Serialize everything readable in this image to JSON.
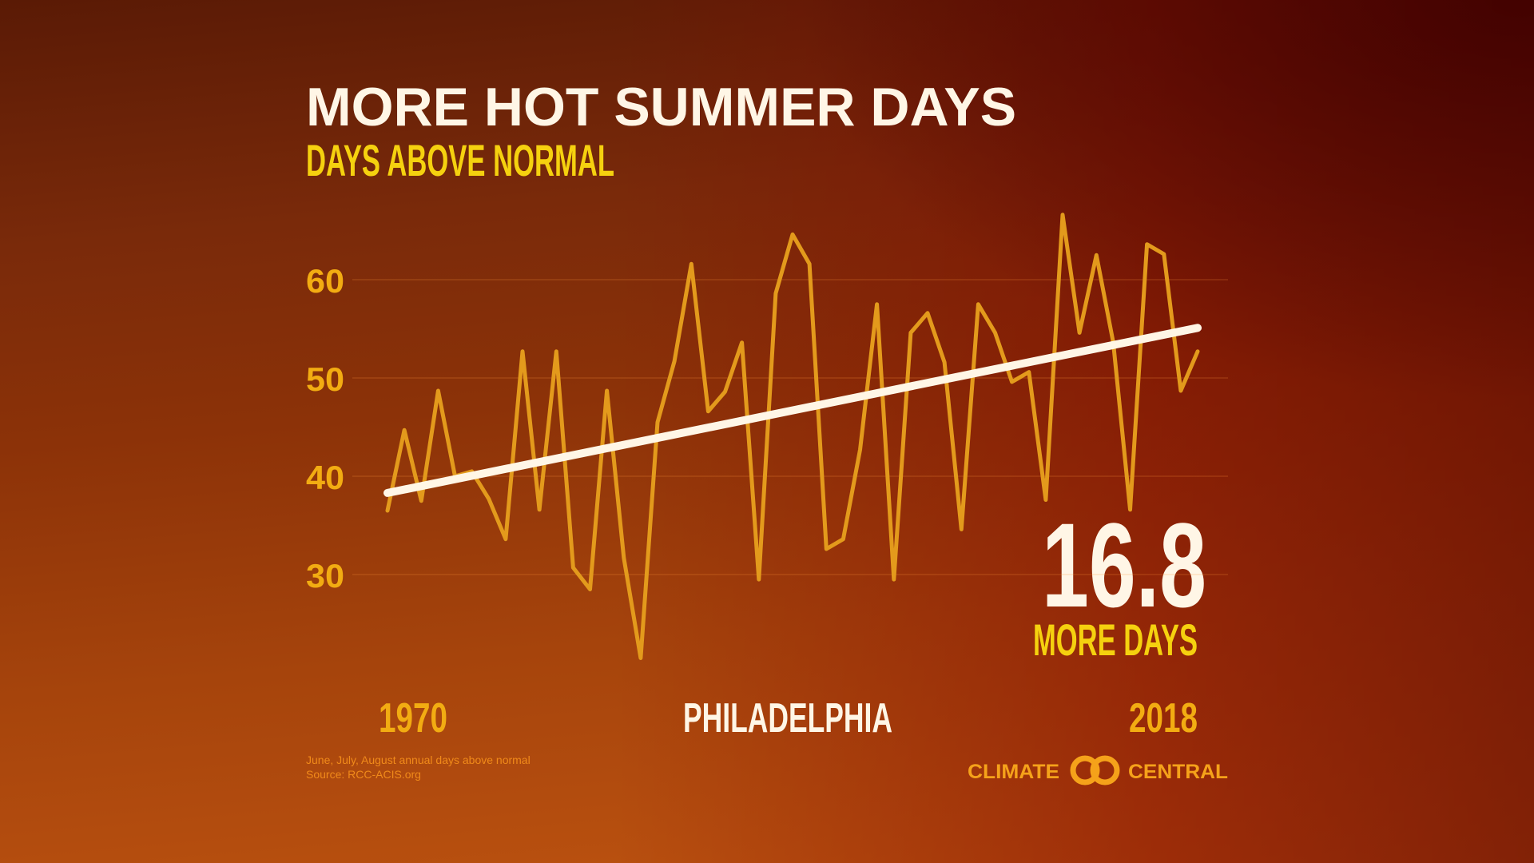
{
  "chart_data": {
    "type": "line",
    "title": "MORE HOT SUMMER DAYS",
    "subtitle": "DAYS ABOVE NORMAL",
    "location": "PHILADELPHIA",
    "annotation_value": 16.8,
    "annotation_label": "MORE DAYS",
    "x": [
      1970,
      1971,
      1972,
      1973,
      1974,
      1975,
      1976,
      1977,
      1978,
      1979,
      1980,
      1981,
      1982,
      1983,
      1984,
      1985,
      1986,
      1987,
      1988,
      1989,
      1990,
      1991,
      1992,
      1993,
      1994,
      1995,
      1996,
      1997,
      1998,
      1999,
      2000,
      2001,
      2002,
      2003,
      2004,
      2005,
      2006,
      2007,
      2008,
      2009,
      2010,
      2011,
      2012,
      2013,
      2014,
      2015,
      2016,
      2017,
      2018
    ],
    "values": [
      36.5,
      44.7,
      37.5,
      48.7,
      40,
      40.5,
      37.7,
      33.6,
      52.7,
      36.6,
      52.7,
      30.7,
      28.5,
      48.7,
      31.7,
      21.5,
      45.5,
      51.7,
      61.6,
      46.6,
      48.6,
      53.6,
      29.5,
      58.6,
      64.6,
      61.6,
      32.6,
      33.6,
      42.7,
      57.5,
      29.5,
      54.6,
      56.6,
      51.6,
      34.6,
      57.5,
      54.6,
      49.6,
      50.6,
      37.6,
      66.6,
      54.6,
      62.5,
      53.6,
      36.6,
      63.6,
      62.6,
      48.7,
      52.7
    ],
    "color": "#e39a1c",
    "trend": {
      "x": [
        1970,
        2018
      ],
      "values": [
        38.3,
        55.1
      ],
      "color": "#fff6e6"
    },
    "xlim": [
      1970,
      2018
    ],
    "xticks": [
      1970,
      2018
    ],
    "ylim": [
      20,
      70
    ],
    "yticks": [
      30,
      40,
      50,
      60
    ],
    "grid": true
  },
  "footer": {
    "notes": [
      "June, July, August annual days above normal",
      "Source: RCC-ACIS.org"
    ],
    "logo_left": "CLIMATE",
    "logo_right": "CENTRAL"
  }
}
